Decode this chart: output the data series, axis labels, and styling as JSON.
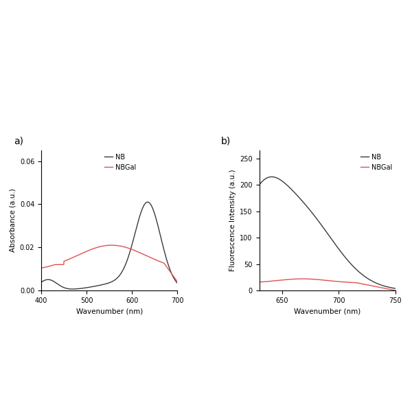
{
  "panel_a": {
    "title": "a)",
    "xlabel": "Wavenumber (nm)",
    "ylabel": "Absorbance (a.u.)",
    "xlim": [
      400,
      700
    ],
    "ylim": [
      0.0,
      0.065
    ],
    "yticks": [
      0.0,
      0.02,
      0.04,
      0.06
    ],
    "xticks": [
      400,
      500,
      600,
      700
    ],
    "nb_color": "#3a3a3a",
    "nbgal_color": "#e05050"
  },
  "panel_b": {
    "title": "b)",
    "xlabel": "Wavenumber (nm)",
    "ylabel": "Fluorescence Intensity (a.u.)",
    "xlim": [
      630,
      750
    ],
    "ylim": [
      0,
      265
    ],
    "yticks": [
      0,
      50,
      100,
      150,
      200,
      250
    ],
    "xticks": [
      650,
      700,
      750
    ],
    "nb_color": "#3a3a3a",
    "nbgal_color": "#e05050"
  },
  "background_color": "#ffffff",
  "legend_nb": "NB",
  "legend_nbgal": "NBGal"
}
